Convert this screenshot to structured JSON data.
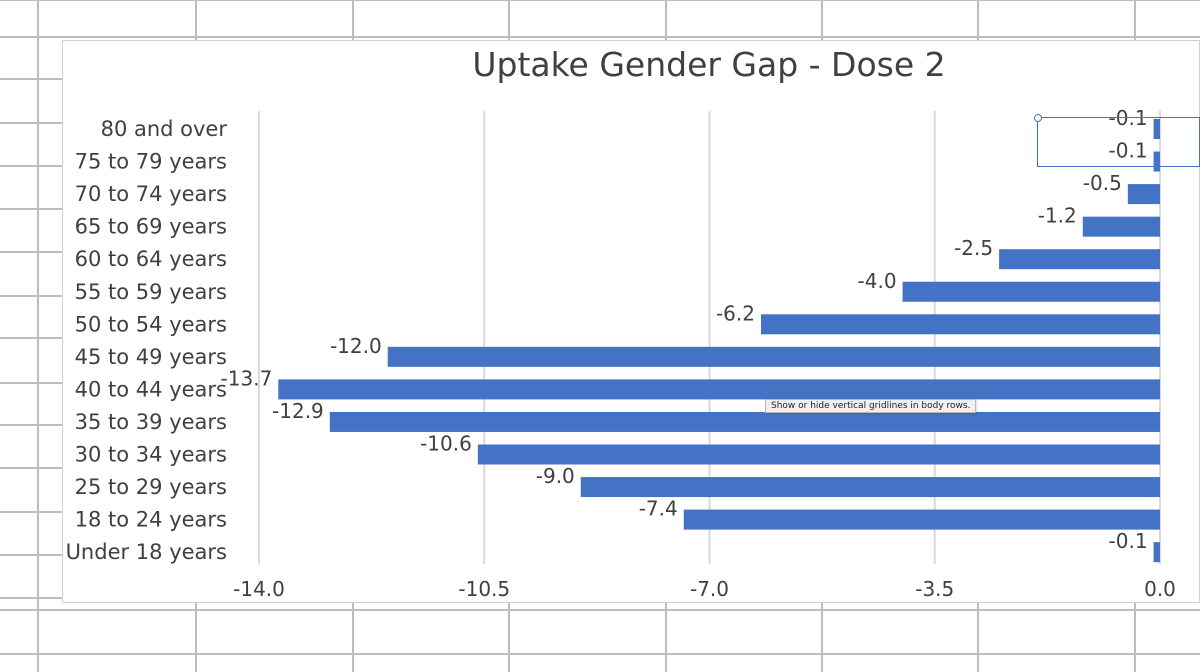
{
  "colors": {
    "bar": "#4472c4",
    "gridline": "#d9d9d9",
    "text": "#404040",
    "sheet_grid": "#bdbdbd"
  },
  "tooltip": {
    "text": "Show or hide vertical gridlines in body rows."
  },
  "chart_data": {
    "type": "bar",
    "orientation": "horizontal",
    "title": "Uptake Gender Gap - Dose 2",
    "xlabel": "",
    "ylabel": "",
    "xlim": [
      -14.0,
      0.0
    ],
    "x_ticks": [
      "-14.0",
      "-10.5",
      "-7.0",
      "-3.5",
      "0.0"
    ],
    "grid": "vertical",
    "legend": "none",
    "categories": [
      "80 and over",
      "75 to 79 years",
      "70 to 74 years",
      "65 to 69 years",
      "60 to 64 years",
      "55 to 59 years",
      "50 to 54 years",
      "45 to 49 years",
      "40 to 44 years",
      "35 to 39 years",
      "30 to 34 years",
      "25 to 29 years",
      "18 to 24 years",
      "Under 18 years"
    ],
    "values": [
      -0.1,
      -0.1,
      -0.5,
      -1.2,
      -2.5,
      -4.0,
      -6.2,
      -12.0,
      -13.7,
      -12.9,
      -10.6,
      -9.0,
      -7.4,
      -0.1
    ],
    "value_labels": [
      "-0.1",
      "-0.1",
      "-0.5",
      "-1.2",
      "-2.5",
      "-4.0",
      "-6.2",
      "-12.0",
      "-13.7",
      "-12.9",
      "-10.6",
      "-9.0",
      "-7.4",
      "-0.1"
    ]
  }
}
